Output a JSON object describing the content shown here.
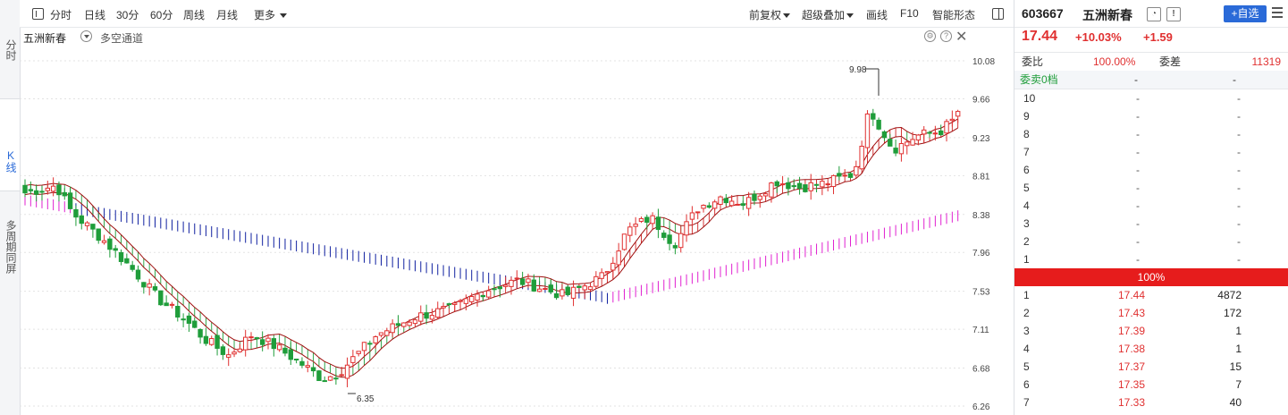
{
  "sidebar": {
    "tabs": [
      {
        "label": "分时"
      },
      {
        "label": "K线",
        "active": true
      },
      {
        "label": "多周期同屏"
      }
    ]
  },
  "toolbar": {
    "tabs": [
      "分时",
      "日线",
      "30分",
      "60分",
      "周线",
      "月线"
    ],
    "more_label": "更多",
    "right_items": [
      "前复权",
      "超级叠加",
      "画线",
      "F10",
      "智能形态"
    ]
  },
  "chart_header": {
    "stock_name": "五洲新春",
    "mode_label": "多空通道"
  },
  "chart_data": {
    "type": "candlestick",
    "y_ticks": [
      "10.08",
      "9.66",
      "9.23",
      "8.81",
      "8.38",
      "7.96",
      "7.53",
      "7.11",
      "6.68",
      "6.26"
    ],
    "ylim": [
      6.26,
      10.08
    ],
    "annotations": {
      "high": "9.98",
      "low": "6.35"
    },
    "colors": {
      "up": "#e03030",
      "down": "#1f9d3a",
      "blue_channel": "#1020a0",
      "magenta_channel": "#e020d0"
    }
  },
  "stock": {
    "code": "603667",
    "name": "五洲新春",
    "price": "17.44",
    "change_pct": "+10.03%",
    "change": "+1.59",
    "add_label": "+自选"
  },
  "order_stats": {
    "ratio_label": "委比",
    "ratio_value": "100.00%",
    "diff_label": "委差",
    "diff_value": "11319",
    "sell0_label": "委卖0档",
    "sell0_a": "-",
    "sell0_b": "-"
  },
  "sell_levels": [
    {
      "level": "10",
      "price": "-",
      "vol": "-"
    },
    {
      "level": "9",
      "price": "-",
      "vol": "-"
    },
    {
      "level": "8",
      "price": "-",
      "vol": "-"
    },
    {
      "level": "7",
      "price": "-",
      "vol": "-"
    },
    {
      "level": "6",
      "price": "-",
      "vol": "-"
    },
    {
      "level": "5",
      "price": "-",
      "vol": "-"
    },
    {
      "level": "4",
      "price": "-",
      "vol": "-"
    },
    {
      "level": "3",
      "price": "-",
      "vol": "-"
    },
    {
      "level": "2",
      "price": "-",
      "vol": "-"
    },
    {
      "level": "1",
      "price": "-",
      "vol": "-"
    }
  ],
  "bar_label": "100%",
  "buy_levels": [
    {
      "level": "1",
      "price": "17.44",
      "vol": "4872"
    },
    {
      "level": "2",
      "price": "17.43",
      "vol": "172"
    },
    {
      "level": "3",
      "price": "17.39",
      "vol": "1"
    },
    {
      "level": "4",
      "price": "17.38",
      "vol": "1"
    },
    {
      "level": "5",
      "price": "17.37",
      "vol": "15"
    },
    {
      "level": "6",
      "price": "17.35",
      "vol": "7"
    },
    {
      "level": "7",
      "price": "17.33",
      "vol": "40"
    }
  ]
}
